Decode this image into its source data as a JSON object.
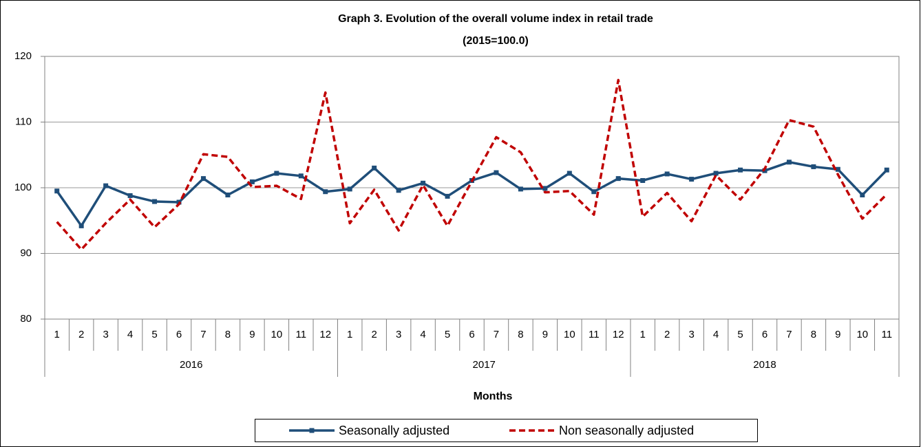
{
  "chart_data": {
    "type": "line",
    "title": "Graph 3. Evolution of the overall  volume index in retail trade",
    "subtitle": "(2015=100.0)",
    "x_label": "Months",
    "category_groups": [
      {
        "label": "2016",
        "categories": [
          "1",
          "2",
          "3",
          "4",
          "5",
          "6",
          "7",
          "8",
          "9",
          "10",
          "11",
          "12"
        ]
      },
      {
        "label": "2017",
        "categories": [
          "1",
          "2",
          "3",
          "4",
          "5",
          "6",
          "7",
          "8",
          "9",
          "10",
          "11",
          "12"
        ]
      },
      {
        "label": "2018",
        "categories": [
          "1",
          "2",
          "3",
          "4",
          "5",
          "6",
          "7",
          "8",
          "9",
          "10",
          "11"
        ]
      }
    ],
    "series": [
      {
        "name": "Seasonally adjusted",
        "color": "#1f4e79",
        "dashed": false,
        "markers": true,
        "values": [
          99.5,
          94.2,
          100.3,
          98.8,
          97.9,
          97.8,
          101.4,
          98.9,
          100.9,
          102.2,
          101.8,
          99.4,
          99.8,
          103.0,
          99.6,
          100.7,
          98.7,
          101.1,
          102.3,
          99.8,
          99.9,
          102.2,
          99.4,
          101.4,
          101.1,
          102.1,
          101.3,
          102.2,
          102.7,
          102.6,
          103.9,
          103.2,
          102.8,
          98.9,
          102.7
        ]
      },
      {
        "name": "Non seasonally adjusted",
        "color": "#c00000",
        "dashed": true,
        "markers": false,
        "values": [
          94.8,
          90.6,
          94.6,
          98.2,
          94.0,
          97.5,
          105.1,
          104.7,
          100.1,
          100.3,
          98.3,
          114.5,
          94.6,
          99.7,
          93.5,
          100.4,
          94.2,
          101.0,
          107.7,
          105.4,
          99.3,
          99.5,
          95.9,
          116.4,
          95.6,
          99.2,
          94.9,
          101.9,
          98.2,
          102.9,
          110.3,
          109.3,
          102.0,
          95.3,
          99.0
        ]
      }
    ],
    "ylim": [
      80,
      120
    ],
    "yticks": [
      80,
      90,
      100,
      110,
      120
    ],
    "grid": true,
    "legend": "bottom"
  }
}
